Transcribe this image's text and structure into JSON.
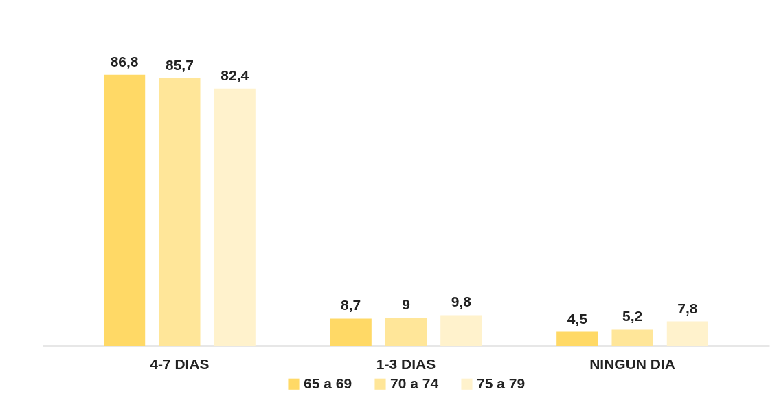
{
  "chart_data": {
    "type": "bar",
    "categories": [
      "4-7 DIAS",
      "1-3 DIAS",
      "NINGUN DIA"
    ],
    "series": [
      {
        "name": "65 a 69",
        "color": "#ffd966",
        "values": [
          86.8,
          8.7,
          4.5
        ],
        "value_labels": [
          "86,8",
          "8,7",
          "4,5"
        ]
      },
      {
        "name": "70 a 74",
        "color": "#ffe699",
        "values": [
          85.7,
          9,
          5.2
        ],
        "value_labels": [
          "85,7",
          "9",
          "5,2"
        ]
      },
      {
        "name": "75 a 79",
        "color": "#fff2cc",
        "values": [
          82.4,
          9.8,
          7.8
        ],
        "value_labels": [
          "82,4",
          "9,8",
          "7,8"
        ]
      }
    ],
    "grid": false,
    "legend": "bottom"
  }
}
